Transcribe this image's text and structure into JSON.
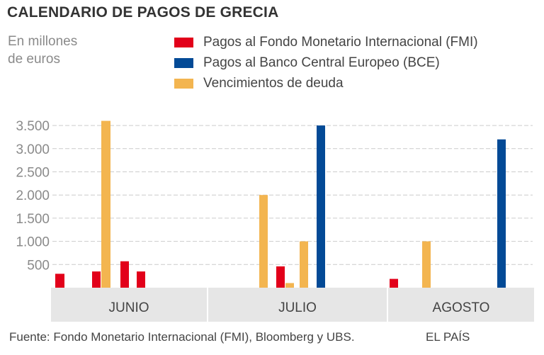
{
  "title": "CALENDARIO DE PAGOS DE GRECIA",
  "unit_line1": "En millones",
  "unit_line2": "de euros",
  "source": "Fuente: Fondo Monetario Internacional (FMI), Bloomberg y UBS.",
  "brand": "EL PAÍS",
  "colors": {
    "fmi": "#e2001a",
    "bce": "#034a96",
    "deuda": "#f3b550",
    "grid": "#cccccc",
    "band": "#e6e6e6"
  },
  "chart_data": {
    "type": "bar",
    "title": "CALENDARIO DE PAGOS DE GRECIA",
    "ylabel": "En millones de euros",
    "xlabel": "",
    "ylim": [
      0,
      3500
    ],
    "yticks": [
      500,
      1000,
      1500,
      2000,
      2500,
      3000,
      3500
    ],
    "ytick_labels": [
      "500",
      "1.000",
      "1.500",
      "2.000",
      "2.500",
      "3.000",
      "3.500"
    ],
    "grid": true,
    "legend_position": "top",
    "legend": [
      {
        "key": "fmi",
        "label": "Pagos al Fondo Monetario Internacional (FMI)"
      },
      {
        "key": "bce",
        "label": "Pagos al Banco Central Europeo (BCE)"
      },
      {
        "key": "deuda",
        "label": "Vencimientos de deuda"
      }
    ],
    "categories": [
      "JUNIO",
      "JULIO",
      "AGOSTO"
    ],
    "bars": [
      {
        "month": "JUNIO",
        "series": "fmi",
        "value": 300
      },
      {
        "month": "JUNIO",
        "series": "fmi",
        "value": 350
      },
      {
        "month": "JUNIO",
        "series": "deuda",
        "value": 3600
      },
      {
        "month": "JUNIO",
        "series": "fmi",
        "value": 570
      },
      {
        "month": "JUNIO",
        "series": "fmi",
        "value": 350
      },
      {
        "month": "JULIO",
        "series": "deuda",
        "value": 2000
      },
      {
        "month": "JULIO",
        "series": "fmi",
        "value": 460
      },
      {
        "month": "JULIO",
        "series": "deuda",
        "value": 100
      },
      {
        "month": "JULIO",
        "series": "deuda",
        "value": 1000
      },
      {
        "month": "JULIO",
        "series": "bce",
        "value": 3500
      },
      {
        "month": "AGOSTO",
        "series": "fmi",
        "value": 190
      },
      {
        "month": "AGOSTO",
        "series": "deuda",
        "value": 1000
      },
      {
        "month": "AGOSTO",
        "series": "bce",
        "value": 3200
      }
    ]
  }
}
